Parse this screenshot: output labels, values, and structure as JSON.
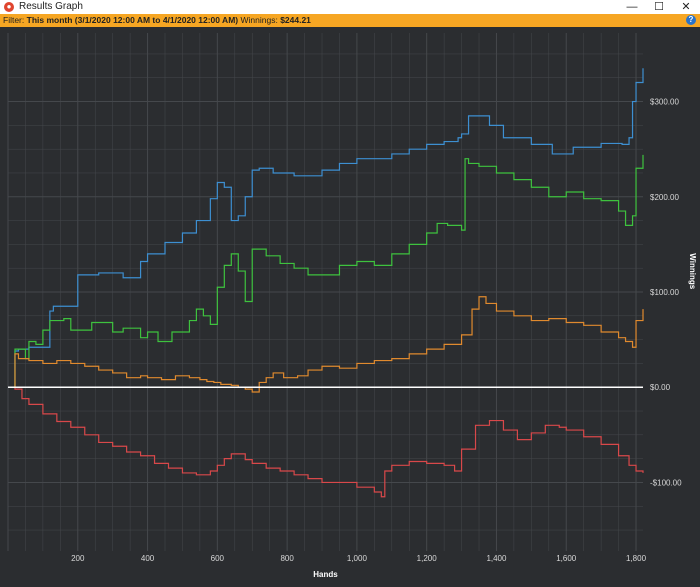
{
  "window": {
    "title": "Results Graph",
    "minimize_glyph": "—",
    "maximize_glyph": "☐",
    "close_glyph": "✕"
  },
  "filter": {
    "label": "Filter:",
    "period": "This month (3/1/2020 12:00 AM to 4/1/2020 12:00 AM)",
    "winnings_label": "Winnings:",
    "winnings_value": "$244.21"
  },
  "chart_data": {
    "type": "line",
    "xlabel": "Hands",
    "ylabel": "Winnings",
    "xlim": [
      0,
      1820
    ],
    "ylim": [
      -172,
      372
    ],
    "x_ticks": [
      200,
      400,
      600,
      800,
      1000,
      1200,
      1400,
      1600,
      1800
    ],
    "x_tick_labels": [
      "200",
      "400",
      "600",
      "800",
      "1,000",
      "1,200",
      "1,400",
      "1,600",
      "1,800"
    ],
    "y_ticks": [
      300,
      200,
      100,
      0,
      -100
    ],
    "y_tick_labels": [
      "$300.00",
      "$200.00",
      "$100.00",
      "$0.00",
      "-$100.00"
    ],
    "grid": true,
    "colors": {
      "blue": "#3d8fd1",
      "green": "#3ec23e",
      "orange": "#e08a2e",
      "red": "#d9484a",
      "zero": "#ffffff",
      "background": "#2b2d30",
      "grid": "#45484c"
    },
    "series": [
      {
        "color": "#3d8fd1",
        "x": [
          0,
          20,
          30,
          60,
          120,
          130,
          200,
          260,
          300,
          330,
          380,
          400,
          450,
          500,
          540,
          580,
          600,
          620,
          640,
          660,
          680,
          700,
          720,
          760,
          820,
          900,
          950,
          1000,
          1100,
          1150,
          1200,
          1250,
          1290,
          1300,
          1320,
          1380,
          1420,
          1500,
          1560,
          1620,
          1700,
          1760,
          1780,
          1790,
          1800,
          1820
        ],
        "values": [
          0,
          38,
          40,
          42,
          80,
          85,
          118,
          120,
          120,
          115,
          132,
          140,
          152,
          162,
          175,
          198,
          215,
          210,
          175,
          180,
          200,
          228,
          230,
          225,
          222,
          228,
          235,
          240,
          245,
          250,
          255,
          258,
          262,
          266,
          285,
          275,
          262,
          255,
          245,
          252,
          256,
          255,
          262,
          300,
          320,
          335
        ]
      },
      {
        "color": "#3ec23e",
        "x": [
          0,
          20,
          50,
          60,
          80,
          100,
          120,
          160,
          180,
          240,
          300,
          330,
          380,
          400,
          430,
          470,
          520,
          540,
          560,
          580,
          600,
          620,
          640,
          660,
          680,
          700,
          740,
          780,
          820,
          860,
          900,
          950,
          1000,
          1050,
          1100,
          1150,
          1200,
          1230,
          1260,
          1300,
          1310,
          1320,
          1350,
          1400,
          1450,
          1500,
          1550,
          1600,
          1650,
          1700,
          1750,
          1770,
          1790,
          1800,
          1820
        ],
        "values": [
          0,
          40,
          30,
          48,
          45,
          60,
          70,
          72,
          60,
          68,
          58,
          62,
          52,
          58,
          48,
          58,
          70,
          82,
          75,
          66,
          105,
          128,
          140,
          122,
          90,
          145,
          138,
          130,
          125,
          118,
          118,
          128,
          132,
          128,
          140,
          150,
          162,
          172,
          170,
          165,
          240,
          235,
          232,
          225,
          218,
          210,
          200,
          205,
          198,
          196,
          185,
          170,
          180,
          230,
          244
        ]
      },
      {
        "color": "#e08a2e",
        "x": [
          0,
          20,
          30,
          60,
          100,
          140,
          180,
          220,
          260,
          300,
          340,
          380,
          400,
          440,
          480,
          520,
          550,
          570,
          590,
          610,
          640,
          660,
          680,
          700,
          720,
          740,
          760,
          790,
          830,
          860,
          900,
          950,
          1000,
          1050,
          1100,
          1150,
          1200,
          1250,
          1300,
          1330,
          1350,
          1370,
          1400,
          1450,
          1500,
          1550,
          1600,
          1650,
          1700,
          1750,
          1770,
          1790,
          1800,
          1820
        ],
        "values": [
          0,
          35,
          30,
          28,
          25,
          28,
          25,
          22,
          18,
          15,
          10,
          12,
          10,
          8,
          12,
          10,
          8,
          6,
          5,
          3,
          2,
          0,
          -2,
          -5,
          5,
          10,
          15,
          10,
          12,
          18,
          22,
          20,
          25,
          28,
          30,
          35,
          40,
          45,
          55,
          82,
          95,
          88,
          80,
          75,
          70,
          72,
          68,
          65,
          58,
          52,
          48,
          42,
          70,
          82
        ]
      },
      {
        "color": "#d9484a",
        "x": [
          0,
          20,
          40,
          60,
          100,
          140,
          180,
          220,
          260,
          300,
          340,
          380,
          420,
          460,
          500,
          540,
          580,
          600,
          620,
          640,
          680,
          700,
          740,
          780,
          820,
          860,
          900,
          950,
          1000,
          1050,
          1070,
          1080,
          1100,
          1150,
          1200,
          1250,
          1280,
          1300,
          1340,
          1380,
          1420,
          1460,
          1500,
          1540,
          1580,
          1600,
          1650,
          1700,
          1750,
          1780,
          1800,
          1820
        ],
        "values": [
          0,
          -2,
          -12,
          -18,
          -28,
          -36,
          -42,
          -50,
          -58,
          -62,
          -68,
          -72,
          -80,
          -85,
          -90,
          -92,
          -88,
          -82,
          -75,
          -70,
          -76,
          -80,
          -85,
          -88,
          -92,
          -96,
          -100,
          -100,
          -105,
          -110,
          -115,
          -88,
          -82,
          -78,
          -80,
          -82,
          -88,
          -65,
          -40,
          -35,
          -45,
          -55,
          -48,
          -40,
          -42,
          -45,
          -52,
          -60,
          -72,
          -82,
          -88,
          -90
        ]
      }
    ]
  }
}
